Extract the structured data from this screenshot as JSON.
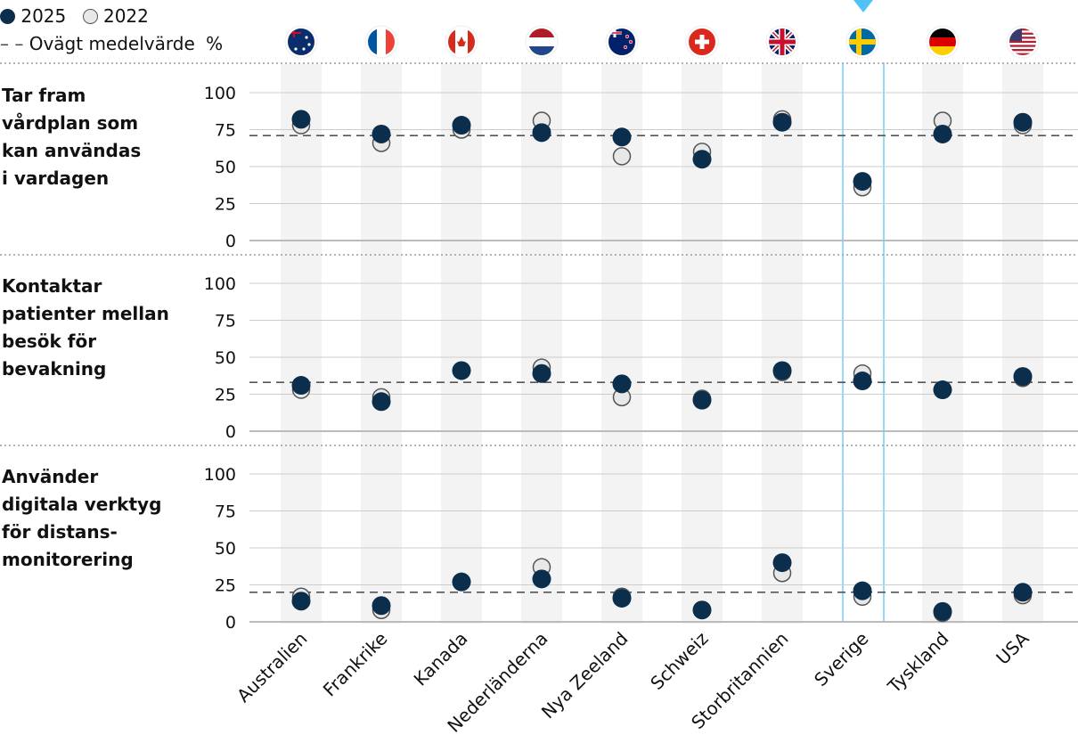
{
  "legend": {
    "series_2025": "2025",
    "series_2022": "2022",
    "mean_label": "Ovägt medelvärde",
    "unit": "%"
  },
  "colors": {
    "s2025": "#0a2e4c",
    "s2022": "#e8e8e8",
    "highlight": "#4fc3f7",
    "band": "#f3f3f3"
  },
  "highlighted_country": "Sverige",
  "chart_data": [
    {
      "type": "scatter",
      "title": "Tar fram vårdplan som kan användas i vardagen",
      "categories": [
        "Australien",
        "Frankrike",
        "Kanada",
        "Nederländerna",
        "Nya Zeeland",
        "Schweiz",
        "Storbritannien",
        "Sverige",
        "Tyskland",
        "USA"
      ],
      "ylim": [
        0,
        100
      ],
      "yticks": [
        0,
        25,
        50,
        75,
        100
      ],
      "series": [
        {
          "name": "2025",
          "values": [
            82,
            72,
            78,
            73,
            70,
            55,
            80,
            40,
            72,
            80
          ]
        },
        {
          "name": "2022",
          "values": [
            78,
            66,
            75,
            81,
            57,
            60,
            82,
            36,
            81,
            78
          ]
        }
      ],
      "mean": 71
    },
    {
      "type": "scatter",
      "title": "Kontaktar patienter mellan besök för bevakning",
      "categories": [
        "Australien",
        "Frankrike",
        "Kanada",
        "Nederländerna",
        "Nya Zeeland",
        "Schweiz",
        "Storbritannien",
        "Sverige",
        "Tyskland",
        "USA"
      ],
      "ylim": [
        0,
        100
      ],
      "yticks": [
        0,
        25,
        50,
        75,
        100
      ],
      "series": [
        {
          "name": "2025",
          "values": [
            31,
            20,
            41,
            39,
            32,
            21,
            41,
            34,
            28,
            37
          ]
        },
        {
          "name": "2022",
          "values": [
            28,
            23,
            41,
            43,
            23,
            22,
            40,
            39,
            28,
            36
          ]
        }
      ],
      "mean": 33
    },
    {
      "type": "scatter",
      "title": "Använder digitala verktyg för distans-monitorering",
      "categories": [
        "Australien",
        "Frankrike",
        "Kanada",
        "Nederländerna",
        "Nya Zeeland",
        "Schweiz",
        "Storbritannien",
        "Sverige",
        "Tyskland",
        "USA"
      ],
      "ylim": [
        0,
        100
      ],
      "yticks": [
        0,
        25,
        50,
        75,
        100
      ],
      "series": [
        {
          "name": "2025",
          "values": [
            14,
            11,
            27,
            29,
            16,
            8,
            40,
            21,
            7,
            20
          ]
        },
        {
          "name": "2022",
          "values": [
            17,
            8,
            27,
            37,
            17,
            8,
            33,
            17,
            6,
            18
          ]
        }
      ],
      "mean": 20
    }
  ],
  "panel_title_lines": [
    [
      "Tar fram",
      "vårdplan som",
      "kan användas",
      "i vardagen"
    ],
    [
      "Kontaktar",
      "patienter mellan",
      "besök för",
      "bevakning"
    ],
    [
      "Använder",
      "digitala verktyg",
      "för distans-",
      "monitorering"
    ]
  ],
  "flags": [
    "australia-flag",
    "france-flag",
    "canada-flag",
    "netherlands-flag",
    "new-zealand-flag",
    "switzerland-flag",
    "uk-flag",
    "sweden-flag",
    "germany-flag",
    "usa-flag"
  ]
}
